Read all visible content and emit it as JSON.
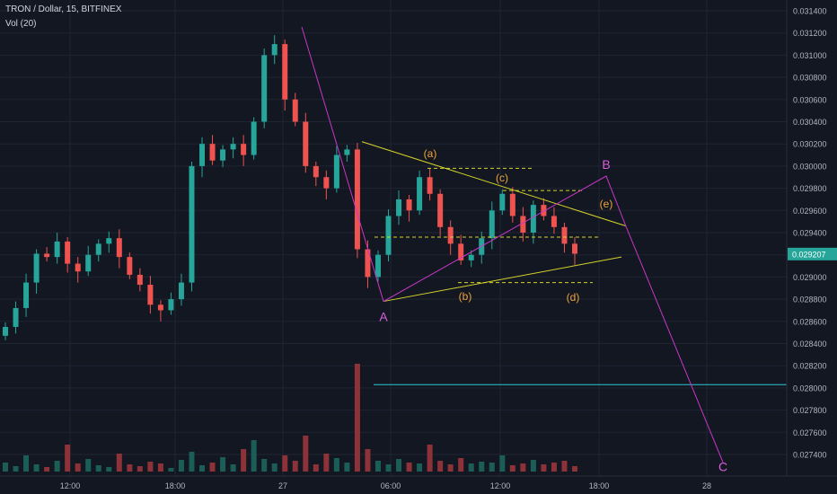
{
  "header": {
    "title": "TRON / Dollar, 15, BITFINEX",
    "volume_indicator": "Vol (20)"
  },
  "price_axis": {
    "ticks": [
      "0.031400",
      "0.031200",
      "0.031000",
      "0.030800",
      "0.030600",
      "0.030400",
      "0.030200",
      "0.030000",
      "0.029800",
      "0.029600",
      "0.029400",
      "0.029200",
      "0.029000",
      "0.028800",
      "0.028600",
      "0.028400",
      "0.028200",
      "0.028000",
      "0.027800",
      "0.027600",
      "0.027400"
    ],
    "last_price": "0.029207"
  },
  "time_axis": {
    "ticks": [
      "12:00",
      "18:00",
      "27",
      "06:00",
      "12:00",
      "18:00",
      "28"
    ]
  },
  "colors": {
    "background": "#131722",
    "grid": "#1f2433",
    "axis_text": "#b2b5be",
    "bull": "#26a69a",
    "bear": "#ef5350",
    "vol_bull": "#1b5e58",
    "vol_bear": "#8c3238",
    "triangle": "#d4d42a",
    "wave": "#c837c8",
    "label_orange": "#f0a43c",
    "label_magenta": "#d85fd8",
    "support": "#29c7d6",
    "last_price_tag": "#26a69a"
  },
  "annotations": {
    "wave_labels": [
      "A",
      "B",
      "C"
    ],
    "triangle_labels": [
      "(a)",
      "(b)",
      "(c)",
      "(d)",
      "(e)"
    ]
  },
  "chart_data": {
    "type": "candlestick",
    "title": "TRON / Dollar, 15, BITFINEX",
    "y_range": [
      0.0273,
      0.0315
    ],
    "last_price": 0.029207,
    "support_level": 0.02803,
    "candles_close": [
      0.02855,
      0.02872,
      0.02895,
      0.02921,
      0.02918,
      0.02932,
      0.02912,
      0.02905,
      0.0292,
      0.0293,
      0.02935,
      0.02918,
      0.02902,
      0.02893,
      0.02875,
      0.0287,
      0.0288,
      0.02895,
      0.03,
      0.0302,
      0.03005,
      0.03015,
      0.0302,
      0.0301,
      0.0304,
      0.031,
      0.0311,
      0.0306,
      0.0304,
      0.03,
      0.0299,
      0.0298,
      0.0301,
      0.03015,
      0.02925,
      0.029,
      0.0292,
      0.02955,
      0.0297,
      0.0296,
      0.0299,
      0.02975,
      0.02945,
      0.0293,
      0.02915,
      0.0292,
      0.02935,
      0.0296,
      0.02975,
      0.02955,
      0.0294,
      0.02965,
      0.02955,
      0.02945,
      0.0293,
      0.02921
    ],
    "wave_path": [
      {
        "label": "A",
        "price": 0.02878
      },
      {
        "label": "B",
        "price": 0.02991
      },
      {
        "label": "C",
        "price": 0.02733
      }
    ],
    "triangle_points": [
      {
        "label": "(a)",
        "price": 0.02998
      },
      {
        "label": "(b)",
        "price": 0.02893
      },
      {
        "label": "(c)",
        "price": 0.02976
      },
      {
        "label": "(d)",
        "price": 0.0292
      },
      {
        "label": "(e)",
        "price": 0.02948
      }
    ]
  }
}
